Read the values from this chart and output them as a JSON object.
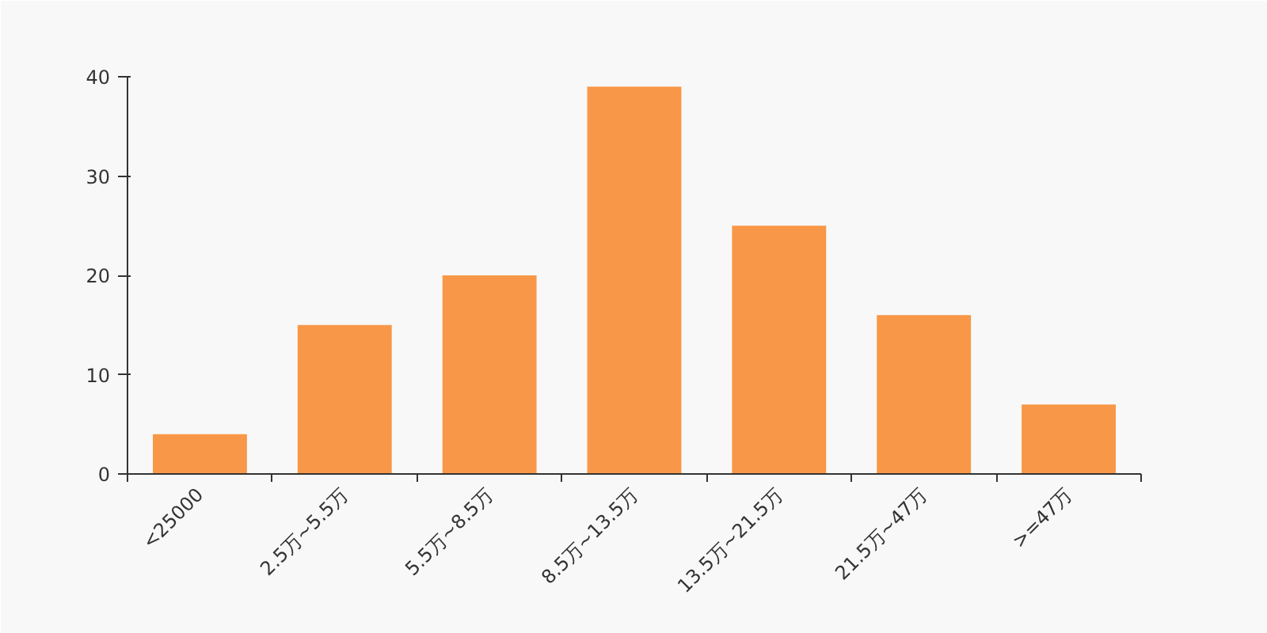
{
  "chart_data": {
    "type": "bar",
    "categories": [
      "<25000",
      "2.5万~5.5万",
      "5.5万~8.5万",
      "8.5万~13.5万",
      "13.5万~21.5万",
      "21.5万~47万",
      ">=47万"
    ],
    "values": [
      4,
      15,
      20,
      39,
      25,
      16,
      7
    ],
    "color": "#f89747",
    "ylim": [
      0,
      40
    ],
    "yticks": [
      0,
      10,
      20,
      30,
      40
    ],
    "grid": false
  }
}
